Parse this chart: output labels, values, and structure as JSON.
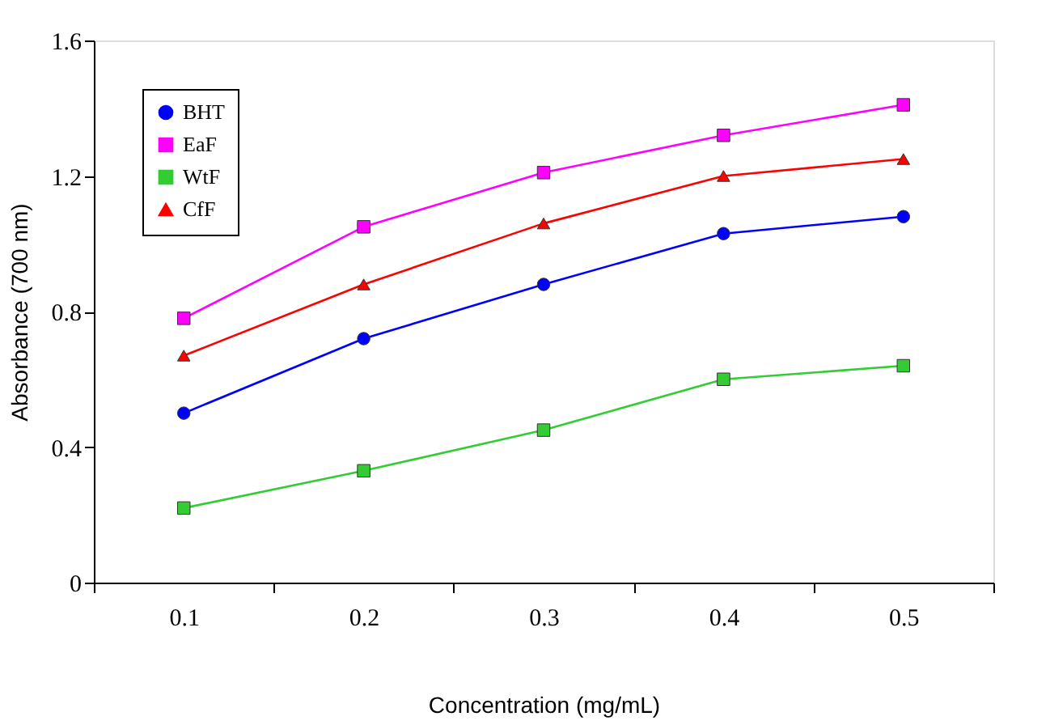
{
  "chart_data": {
    "type": "line",
    "xlabel": "Concentration (mg/mL)",
    "ylabel": "Absorbance (700 nm)",
    "categories": [
      "0.1",
      "0.2",
      "0.3",
      "0.4",
      "0.5"
    ],
    "series": [
      {
        "name": "BHT",
        "color": "#0000ff",
        "marker": "circle",
        "values": [
          0.5,
          0.72,
          0.88,
          1.03,
          1.08
        ]
      },
      {
        "name": "EaF",
        "color": "#ff00ff",
        "marker": "square",
        "values": [
          0.78,
          1.05,
          1.21,
          1.32,
          1.41
        ]
      },
      {
        "name": "WtF",
        "color": "#33cc33",
        "marker": "square",
        "values": [
          0.22,
          0.33,
          0.45,
          0.6,
          0.64
        ]
      },
      {
        "name": "CfF",
        "color": "#ff0000",
        "marker": "triangle",
        "values": [
          0.67,
          0.88,
          1.06,
          1.2,
          1.25
        ]
      }
    ],
    "ylim": [
      0,
      1.6
    ],
    "yticks": [
      0,
      0.4,
      0.8,
      1.2,
      1.6
    ],
    "grid": false,
    "legend": "top left",
    "line_style": "solid"
  }
}
